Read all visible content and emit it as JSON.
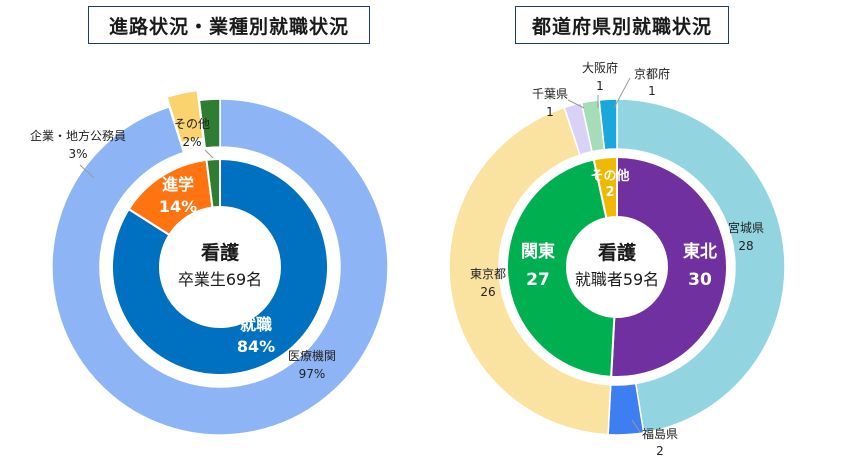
{
  "chart_data": [
    {
      "type": "pie",
      "variant": "nested-donut",
      "title": "進路状況・業種別就職状況",
      "center_label": {
        "title": "看護",
        "subtitle": "卒業生69名"
      },
      "inner_ring": [
        {
          "name": "就職",
          "value": 84,
          "label": "84%",
          "color": "#0070c0",
          "label_color": "#ffffff"
        },
        {
          "name": "進学",
          "value": 14,
          "label": "14%",
          "color": "#ff7410",
          "label_color": "#ffffff"
        },
        {
          "name": "その他",
          "value": 2,
          "label": "2%",
          "color": "#2e7d32",
          "label_color": "#ffffff"
        }
      ],
      "outer_ring": [
        {
          "name": "医療機関",
          "value": 97,
          "label": "97%",
          "color": "#8db4f5"
        },
        {
          "name": "企業・地方公務員",
          "value": 3,
          "label": "3%",
          "color": "#fad26e"
        },
        {
          "name": "その他",
          "value": 2,
          "label": "2%",
          "color": "#2e7d32"
        }
      ]
    },
    {
      "type": "pie",
      "variant": "nested-donut",
      "title": "都道府県別就職状況",
      "center_label": {
        "title": "看護",
        "subtitle": "就職者59名"
      },
      "inner_ring": [
        {
          "name": "東北",
          "value": 30,
          "label": "30",
          "color": "#7030a0",
          "label_color": "#ffffff"
        },
        {
          "name": "関東",
          "value": 27,
          "label": "27",
          "color": "#00b050",
          "label_color": "#ffffff"
        },
        {
          "name": "その他",
          "value": 2,
          "label": "2",
          "color": "#f0b800",
          "label_color": "#ffffff"
        }
      ],
      "outer_ring": [
        {
          "name": "宮城県",
          "value": 28,
          "label": "28",
          "color": "#92d5e0"
        },
        {
          "name": "福島県",
          "value": 2,
          "label": "2",
          "color": "#3d7ff0"
        },
        {
          "name": "東京都",
          "value": 26,
          "label": "26",
          "color": "#fae3a0"
        },
        {
          "name": "千葉県",
          "value": 1,
          "label": "1",
          "color": "#d9d2f5"
        },
        {
          "name": "大阪府",
          "value": 1,
          "label": "1",
          "color": "#a6dcb8"
        },
        {
          "name": "京都府",
          "value": 1,
          "label": "1",
          "color": "#1aa7dc"
        }
      ]
    }
  ]
}
